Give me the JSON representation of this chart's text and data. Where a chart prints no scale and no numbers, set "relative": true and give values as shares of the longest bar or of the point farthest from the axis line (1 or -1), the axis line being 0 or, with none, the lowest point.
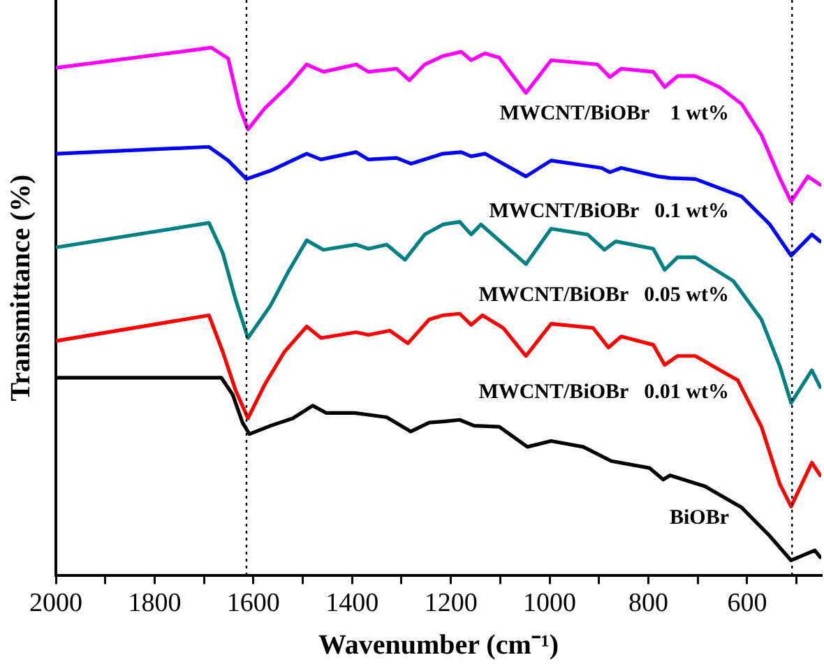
{
  "chart_data": {
    "type": "line",
    "xlabel": "Wavenumber (cm⁻¹)",
    "ylabel": "Transmittance (%)",
    "relative": true,
    "tick_labels": "x",
    "legend": false,
    "grid": false,
    "marker": "none",
    "line_style": "solid",
    "xlim": [
      2000,
      450
    ],
    "xticks": [
      2000,
      {
        "value": 1900,
        "label": null
      },
      1800,
      {
        "value": 1700,
        "label": null
      },
      1600,
      {
        "value": 1500,
        "label": null
      },
      1400,
      {
        "value": 1300,
        "label": null
      },
      1200,
      {
        "value": 1100,
        "label": null
      },
      1000,
      {
        "value": 900,
        "label": null
      },
      800,
      {
        "value": 700,
        "label": null
      },
      600,
      {
        "value": 500,
        "label": null
      }
    ],
    "ref_lines": [
      {
        "axis": "x",
        "value": 1614,
        "color": "#000000",
        "line_style": "dotted"
      },
      {
        "axis": "x",
        "value": 509,
        "color": "#000000",
        "line_style": "dotted"
      }
    ],
    "series": [
      {
        "name": "MWCNT/BiOBr    1 wt%",
        "color": "#ff00ff",
        "x": [
          1997,
          1747,
          1685,
          1651,
          1628,
          1611,
          1577,
          1529,
          1492,
          1458,
          1392,
          1367,
          1310,
          1284,
          1253,
          1216,
          1179,
          1159,
          1131,
          1102,
          1048,
          997,
          903,
          878,
          855,
          790,
          767,
          741,
          705,
          656,
          611,
          571,
          534,
          511,
          477,
          452
        ],
        "values": [
          0.962,
          0.992,
          1.0,
          0.979,
          0.887,
          0.845,
          0.885,
          0.928,
          0.968,
          0.954,
          0.968,
          0.954,
          0.96,
          0.938,
          0.968,
          0.984,
          0.992,
          0.976,
          0.989,
          0.981,
          0.914,
          0.976,
          0.968,
          0.944,
          0.96,
          0.954,
          0.925,
          0.946,
          0.946,
          0.925,
          0.893,
          0.834,
          0.753,
          0.708,
          0.756,
          0.74
        ]
      },
      {
        "name": "MWCNT/BiOBr   0.1 wt%",
        "color": "#0000ff",
        "x": [
          1997,
          1690,
          1651,
          1614,
          1565,
          1492,
          1463,
          1392,
          1367,
          1310,
          1281,
          1216,
          1179,
          1159,
          1131,
          1048,
          997,
          895,
          878,
          855,
          781,
          756,
          705,
          611,
          554,
          511,
          469,
          452
        ],
        "values": [
          0.799,
          0.812,
          0.786,
          0.751,
          0.767,
          0.799,
          0.788,
          0.802,
          0.788,
          0.791,
          0.78,
          0.799,
          0.802,
          0.794,
          0.799,
          0.756,
          0.786,
          0.772,
          0.764,
          0.772,
          0.756,
          0.753,
          0.751,
          0.718,
          0.665,
          0.606,
          0.646,
          0.633
        ]
      },
      {
        "name": "MWCNT/BiOBr   0.05 wt%",
        "color": "#008080",
        "x": [
          1997,
          1690,
          1662,
          1636,
          1611,
          1565,
          1529,
          1492,
          1458,
          1392,
          1367,
          1330,
          1293,
          1253,
          1216,
          1182,
          1159,
          1139,
          1048,
          997,
          923,
          889,
          866,
          790,
          767,
          741,
          705,
          628,
          571,
          534,
          511,
          469,
          452
        ],
        "values": [
          0.622,
          0.668,
          0.611,
          0.523,
          0.45,
          0.512,
          0.576,
          0.635,
          0.617,
          0.627,
          0.619,
          0.627,
          0.598,
          0.646,
          0.665,
          0.67,
          0.646,
          0.665,
          0.59,
          0.657,
          0.646,
          0.617,
          0.633,
          0.619,
          0.579,
          0.603,
          0.603,
          0.558,
          0.485,
          0.397,
          0.327,
          0.389,
          0.357
        ]
      },
      {
        "name": "MWCNT/BiOBr   0.01 wt%",
        "color": "#ff0000",
        "x": [
          1997,
          1690,
          1662,
          1636,
          1611,
          1577,
          1537,
          1492,
          1463,
          1392,
          1367,
          1324,
          1287,
          1244,
          1216,
          1182,
          1159,
          1136,
          1094,
          1048,
          997,
          912,
          881,
          855,
          790,
          767,
          741,
          705,
          619,
          571,
          534,
          511,
          469,
          452
        ],
        "values": [
          0.445,
          0.493,
          0.424,
          0.351,
          0.298,
          0.362,
          0.424,
          0.472,
          0.45,
          0.461,
          0.456,
          0.464,
          0.44,
          0.485,
          0.493,
          0.496,
          0.475,
          0.493,
          0.469,
          0.416,
          0.477,
          0.469,
          0.432,
          0.453,
          0.437,
          0.399,
          0.416,
          0.416,
          0.37,
          0.282,
          0.174,
          0.131,
          0.214,
          0.19
        ]
      },
      {
        "name": "BiOBr",
        "color": "#000000",
        "x": [
          1997,
          1665,
          1642,
          1622,
          1608,
          1565,
          1520,
          1480,
          1452,
          1395,
          1330,
          1281,
          1244,
          1216,
          1182,
          1153,
          1102,
          1045,
          997,
          932,
          875,
          798,
          770,
          756,
          685,
          611,
          554,
          511,
          463,
          452
        ],
        "values": [
          0.375,
          0.375,
          0.343,
          0.29,
          0.268,
          0.284,
          0.298,
          0.322,
          0.308,
          0.308,
          0.3,
          0.273,
          0.29,
          0.292,
          0.295,
          0.284,
          0.282,
          0.244,
          0.255,
          0.244,
          0.217,
          0.204,
          0.182,
          0.19,
          0.169,
          0.129,
          0.075,
          0.029,
          0.048,
          0.035
        ]
      }
    ]
  }
}
